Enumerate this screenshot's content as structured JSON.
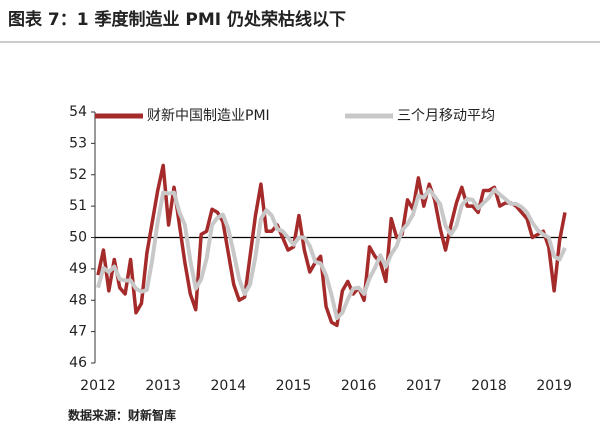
{
  "chart_data": {
    "type": "line",
    "title": "图表 7：1 季度制造业 PMI 仍处荣枯线以下",
    "source": "数据来源：财新智库",
    "categories": [
      "2012",
      null,
      null,
      null,
      null,
      null,
      null,
      null,
      null,
      null,
      null,
      null,
      "2013",
      null,
      null,
      null,
      null,
      null,
      null,
      null,
      null,
      null,
      null,
      null,
      "2014",
      null,
      null,
      null,
      null,
      null,
      null,
      null,
      null,
      null,
      null,
      null,
      "2015",
      null,
      null,
      null,
      null,
      null,
      null,
      null,
      null,
      null,
      null,
      null,
      "2016",
      null,
      null,
      null,
      null,
      null,
      null,
      null,
      null,
      null,
      null,
      null,
      "2017",
      null,
      null,
      null,
      null,
      null,
      null,
      null,
      null,
      null,
      null,
      null,
      "2018",
      null,
      null,
      null,
      null,
      null,
      null,
      null,
      null,
      null,
      null,
      null,
      "2019",
      null,
      null
    ],
    "series": [
      {
        "name": "财新中国制造业PMI",
        "color": "#a52a2a",
        "values": [
          48.8,
          49.6,
          48.3,
          49.3,
          48.4,
          48.2,
          49.3,
          47.6,
          47.9,
          49.5,
          50.5,
          51.5,
          52.3,
          50.4,
          51.6,
          50.4,
          49.2,
          48.2,
          47.7,
          50.1,
          50.2,
          50.9,
          50.8,
          50.5,
          49.5,
          48.5,
          48.0,
          48.1,
          49.4,
          50.7,
          51.7,
          50.2,
          50.2,
          50.4,
          50.0,
          49.6,
          49.7,
          50.7,
          49.6,
          48.9,
          49.2,
          49.4,
          47.8,
          47.3,
          47.2,
          48.3,
          48.6,
          48.2,
          48.4,
          48.0,
          49.7,
          49.4,
          49.2,
          48.6,
          50.6,
          50.0,
          50.1,
          51.2,
          50.9,
          51.9,
          51.0,
          51.7,
          51.2,
          50.3,
          49.6,
          50.4,
          51.1,
          51.6,
          51.0,
          51.0,
          50.8,
          51.5,
          51.5,
          51.6,
          51.0,
          51.1,
          51.1,
          51.0,
          50.8,
          50.6,
          50.0,
          50.1,
          50.2,
          49.7,
          48.3,
          49.9,
          50.8
        ]
      },
      {
        "name": "三个月移动平均",
        "color": "#c8c8c8",
        "values": [
          48.4,
          49.03,
          48.9,
          49.07,
          48.67,
          48.63,
          48.63,
          48.37,
          48.27,
          48.33,
          49.3,
          50.5,
          51.43,
          51.4,
          51.43,
          50.8,
          50.4,
          49.27,
          48.37,
          48.67,
          49.33,
          50.4,
          50.63,
          50.73,
          50.27,
          49.5,
          48.67,
          48.2,
          48.5,
          49.4,
          50.6,
          50.87,
          50.7,
          50.27,
          50.2,
          50.0,
          49.77,
          50.0,
          50.0,
          49.73,
          49.23,
          49.17,
          48.8,
          48.17,
          47.43,
          47.6,
          48.03,
          48.37,
          48.4,
          48.2,
          48.7,
          49.03,
          49.43,
          49.07,
          49.47,
          49.73,
          50.23,
          50.43,
          50.73,
          51.33,
          51.27,
          51.53,
          51.3,
          51.07,
          50.37,
          50.1,
          50.37,
          51.03,
          51.23,
          51.2,
          50.93,
          51.1,
          51.27,
          51.53,
          51.37,
          51.23,
          51.07,
          51.07,
          50.97,
          50.8,
          50.47,
          50.23,
          50.1,
          50.0,
          49.4,
          49.3,
          49.67
        ]
      }
    ],
    "ylim": [
      46,
      54
    ],
    "yticks": [
      46,
      47,
      48,
      49,
      50,
      51,
      52,
      53,
      54
    ],
    "baseline": 50,
    "legend": "top"
  }
}
